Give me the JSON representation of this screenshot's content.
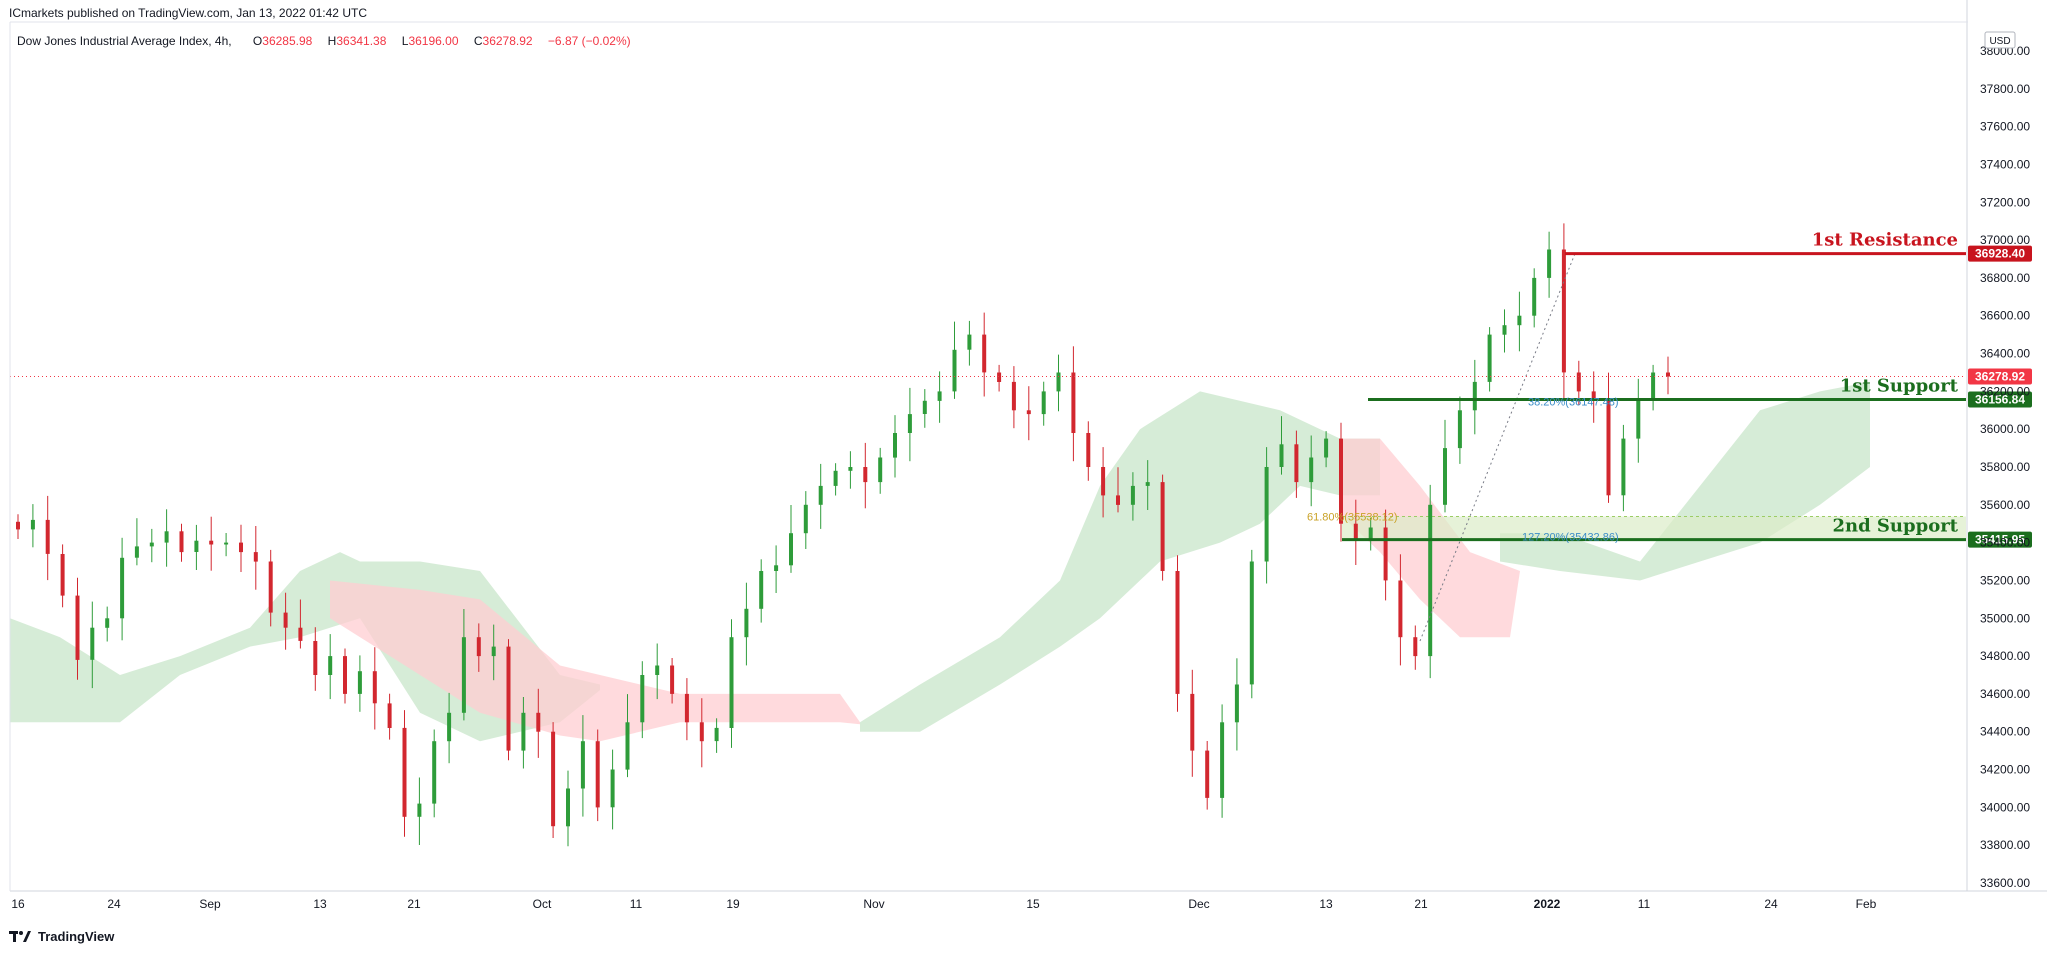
{
  "publisher": "ICmarkets published on TradingView.com, Jan 13, 2022 01:42 UTC",
  "legend": {
    "symbol": "Dow Jones Industrial Average Index, 4h,",
    "open_label": "O",
    "open": "36285.98",
    "high_label": "H",
    "high": "36341.38",
    "low_label": "L",
    "low": "36196.00",
    "close_label": "C",
    "close": "36278.92",
    "change": "−6.87 (−0.02%)"
  },
  "currency": "USD",
  "brand": "TradingView",
  "colors": {
    "up": "#26a69a",
    "up_candle": "#2e9c3a",
    "down": "#d2272f",
    "resistance": "#c8141e",
    "support": "#1b6e1e",
    "cloud_bull": "#c8e6c9",
    "cloud_bear": "#ffcdd2",
    "last_price": "#f23645",
    "fib_gold": "#c9a227",
    "fib_blue": "#3d8ec9"
  },
  "chart_data": {
    "type": "candlestick",
    "title": "Dow Jones Industrial Average Index, 4h",
    "ylabel": "USD",
    "ylim": [
      33600,
      38000
    ],
    "y_ticks": [
      "38000.00",
      "37800.00",
      "37600.00",
      "37400.00",
      "37200.00",
      "37000.00",
      "36800.00",
      "36600.00",
      "36400.00",
      "36200.00",
      "36000.00",
      "35800.00",
      "35600.00",
      "35400.00",
      "35200.00",
      "35000.00",
      "34800.00",
      "34600.00",
      "34400.00",
      "34200.00",
      "34000.00",
      "33800.00",
      "33600.00"
    ],
    "x_ticks": [
      "16",
      "24",
      "Sep",
      "13",
      "21",
      "Oct",
      "11",
      "19",
      "Nov",
      "15",
      "Dec",
      "13",
      "21",
      "2022",
      "11",
      "24",
      "Feb"
    ],
    "last_price": 36278.92,
    "levels": [
      {
        "name": "1st Resistance",
        "value": 36928.4,
        "label": "36928.40",
        "kind": "resistance"
      },
      {
        "name": "1st Support",
        "value": 36156.84,
        "label": "36156.84",
        "kind": "support"
      },
      {
        "name": "2nd Support",
        "value": 35415.95,
        "label": "35415.95",
        "kind": "support"
      }
    ],
    "last_price_label": "36278.92",
    "fib_labels": [
      {
        "text": "38.20%(36147.48)",
        "value": 36147.48
      },
      {
        "text": "61.80%(35538.12)",
        "value": 35538.12
      },
      {
        "text": "127.20%(35432.86)",
        "value": 35432.86
      }
    ],
    "series": [
      {
        "name": "Close (4h, approx.)",
        "values": [
          35470,
          35520,
          35340,
          35120,
          34780,
          34950,
          35000,
          35320,
          35380,
          35400,
          35460,
          35350,
          35410,
          35390,
          35400,
          35350,
          35300,
          35030,
          34950,
          34880,
          34700,
          34800,
          34600,
          34720,
          34550,
          34420,
          33950,
          34020,
          34350,
          34500,
          34900,
          34800,
          34850,
          34300,
          34500,
          34400,
          33900,
          34100,
          34350,
          34000,
          34200,
          34450,
          34700,
          34750,
          34600,
          34450,
          34350,
          34420,
          34900,
          35050,
          35250,
          35280,
          35450,
          35600,
          35700,
          35780,
          35800,
          35720,
          35850,
          35980,
          36080,
          36150,
          36200,
          36420,
          36500,
          36300,
          36250,
          36100,
          36080,
          36200,
          36300,
          35980,
          35800,
          35650,
          35600,
          35700,
          35720,
          35250,
          34600,
          34300,
          34050,
          34450,
          34650,
          35300,
          35800,
          35920,
          35720,
          35850,
          35950,
          35500,
          35420,
          35480,
          35200,
          34900,
          34800,
          35600,
          35900,
          36100,
          36250,
          36500,
          36550,
          36600,
          36800,
          36950,
          36300,
          36200,
          36150,
          35650,
          35950,
          36150,
          36300,
          36278.92
        ]
      }
    ]
  }
}
